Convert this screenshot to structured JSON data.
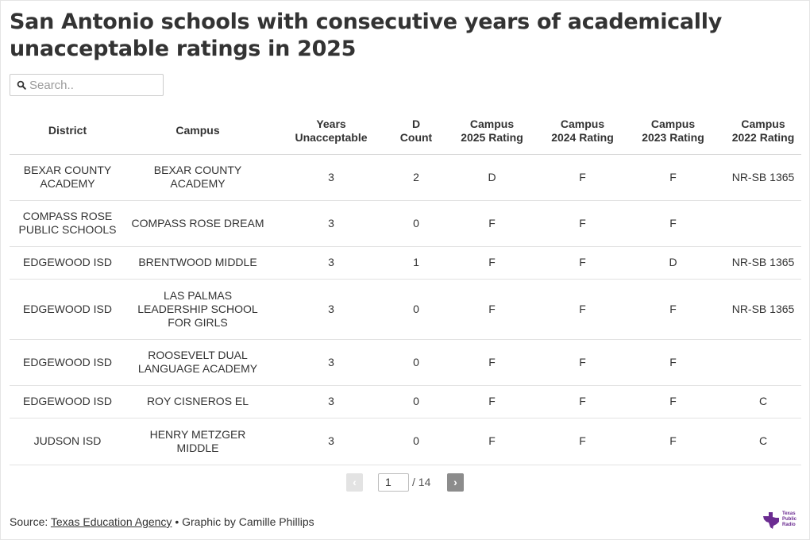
{
  "title": "San Antonio schools with consecutive years of academically unacceptable ratings in 2025",
  "search": {
    "placeholder": "Search.."
  },
  "table": {
    "headers": [
      {
        "line1": "District",
        "line2": ""
      },
      {
        "line1": "Campus",
        "line2": ""
      },
      {
        "line1": "Years",
        "line2": "Unacceptable"
      },
      {
        "line1": "D",
        "line2": "Count"
      },
      {
        "line1": "Campus",
        "line2": "2025 Rating"
      },
      {
        "line1": "Campus",
        "line2": "2024 Rating"
      },
      {
        "line1": "Campus",
        "line2": "2023 Rating"
      },
      {
        "line1": "Campus",
        "line2": "2022 Rating"
      }
    ],
    "rows": [
      [
        "BEXAR COUNTY ACADEMY",
        "BEXAR COUNTY ACADEMY",
        "3",
        "2",
        "D",
        "F",
        "F",
        "NR-SB 1365"
      ],
      [
        "COMPASS ROSE PUBLIC SCHOOLS",
        "COMPASS ROSE DREAM",
        "3",
        "0",
        "F",
        "F",
        "F",
        ""
      ],
      [
        "EDGEWOOD ISD",
        "BRENTWOOD MIDDLE",
        "3",
        "1",
        "F",
        "F",
        "D",
        "NR-SB 1365"
      ],
      [
        "EDGEWOOD ISD",
        "LAS PALMAS LEADERSHIP SCHOOL FOR GIRLS",
        "3",
        "0",
        "F",
        "F",
        "F",
        "NR-SB 1365"
      ],
      [
        "EDGEWOOD ISD",
        "ROOSEVELT DUAL LANGUAGE ACADEMY",
        "3",
        "0",
        "F",
        "F",
        "F",
        ""
      ],
      [
        "EDGEWOOD ISD",
        "ROY CISNEROS EL",
        "3",
        "0",
        "F",
        "F",
        "F",
        "C"
      ],
      [
        "JUDSON ISD",
        "HENRY METZGER MIDDLE",
        "3",
        "0",
        "F",
        "F",
        "F",
        "C"
      ]
    ]
  },
  "pagination": {
    "prev": "‹",
    "next": "›",
    "current_page": "1",
    "total": "/ 14"
  },
  "footer": {
    "source_prefix": "Source: ",
    "source_link": "Texas Education Agency",
    "credit": " • Graphic by Camille Phillips"
  },
  "logo": {
    "line1": "Texas",
    "line2": "Public",
    "line3": "Radio",
    "color": "#6b2c91"
  }
}
